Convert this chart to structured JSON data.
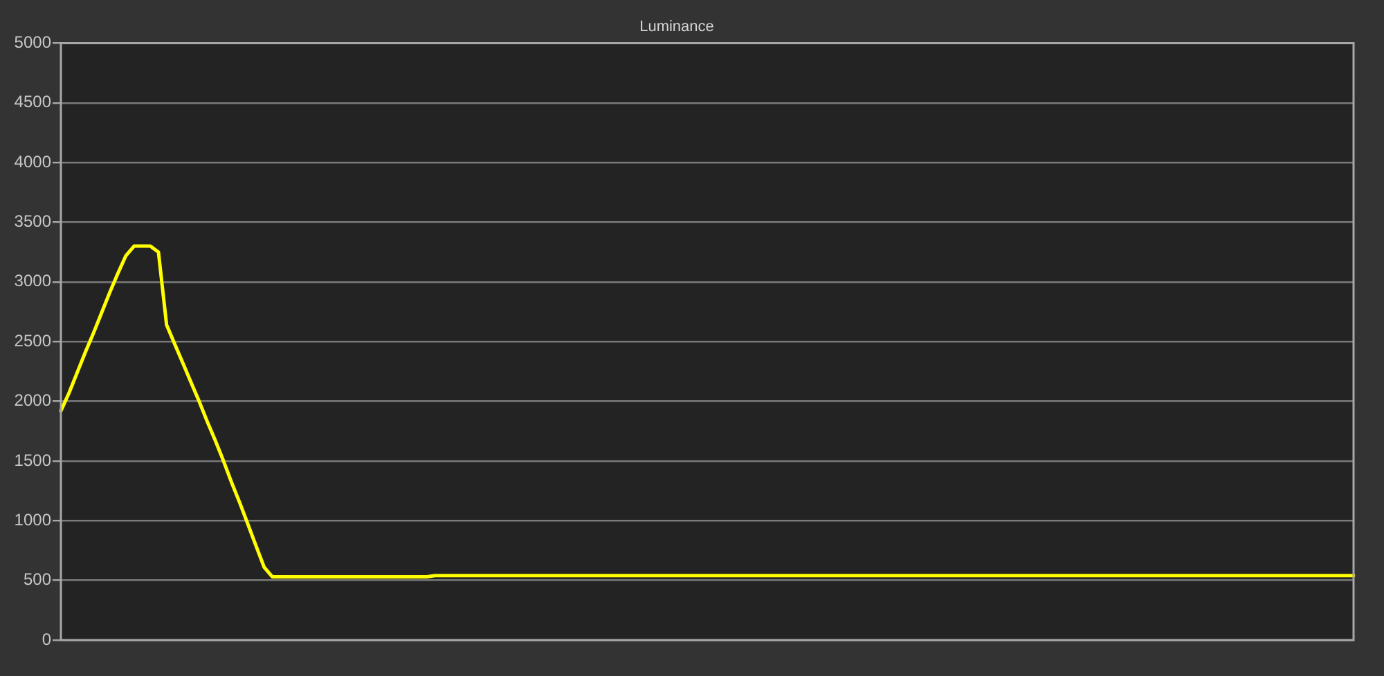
{
  "chart_data": {
    "type": "line",
    "title": "Luminance",
    "categories": [
      null,
      null,
      null,
      null,
      null,
      null,
      null,
      null,
      null,
      null,
      null,
      null,
      null,
      null,
      null,
      null,
      null,
      null,
      null,
      null,
      null,
      null,
      null,
      null,
      null,
      null,
      null,
      null,
      null,
      null,
      null,
      null,
      null,
      null,
      null,
      null,
      null,
      null,
      null,
      null,
      null,
      null,
      null,
      null,
      null,
      null,
      null,
      null,
      null,
      null,
      null,
      null,
      null,
      null,
      null,
      null,
      null,
      null,
      null,
      null,
      null,
      null,
      null,
      null,
      null,
      null,
      null,
      null,
      null,
      null,
      null,
      null,
      null,
      null,
      null,
      null,
      null,
      null,
      null,
      null,
      null,
      null,
      null,
      null,
      null,
      null,
      null,
      null,
      null,
      null,
      null,
      null,
      null,
      null,
      null,
      null,
      null,
      null,
      null,
      null,
      null,
      null,
      null,
      null,
      null,
      null,
      null,
      null,
      null,
      null,
      null,
      null,
      null,
      null,
      null,
      null,
      null,
      null,
      null,
      null,
      null,
      null,
      null,
      null,
      null,
      null,
      null,
      null,
      null,
      null,
      null,
      null,
      null,
      null,
      null,
      null,
      null,
      null,
      null,
      null,
      null,
      null,
      null,
      null,
      null,
      null,
      null,
      null,
      null,
      null,
      null,
      null,
      null,
      null,
      null,
      null,
      null,
      null,
      null,
      null
    ],
    "values": [
      1920,
      2070,
      2240,
      2410,
      2570,
      2740,
      2910,
      3070,
      3220,
      3300,
      3300,
      3300,
      3250,
      2640,
      2480,
      2320,
      2160,
      2000,
      1830,
      1670,
      1500,
      1320,
      1150,
      970,
      790,
      610,
      530,
      530,
      530,
      530,
      530,
      530,
      530,
      530,
      530,
      530,
      530,
      530,
      530,
      530,
      530,
      530,
      530,
      530,
      530,
      530,
      540,
      540,
      540,
      540,
      540,
      540,
      540,
      540,
      540,
      540,
      540,
      540,
      540,
      540,
      540,
      540,
      540,
      540,
      540,
      540,
      540,
      540,
      540,
      540,
      540,
      540,
      540,
      540,
      540,
      540,
      540,
      540,
      540,
      540,
      540,
      540,
      540,
      540,
      540,
      540,
      540,
      540,
      540,
      540,
      540,
      540,
      540,
      540,
      540,
      540,
      540,
      540,
      540,
      540,
      540,
      540,
      540,
      540,
      540,
      540,
      540,
      540,
      540,
      540,
      540,
      540,
      540,
      540,
      540,
      540,
      540,
      540,
      540,
      540,
      540,
      540,
      540,
      540,
      540,
      540,
      540,
      540,
      540,
      540,
      540,
      540,
      540,
      540,
      540,
      540,
      540,
      540,
      540,
      540,
      540,
      540,
      540,
      540,
      540,
      540,
      540,
      540,
      540,
      540,
      540,
      540,
      540,
      540,
      540,
      540,
      540,
      540,
      540,
      540
    ],
    "color": "#ffff00",
    "ylim": [
      0,
      5000
    ],
    "yticks": [
      0,
      500,
      1000,
      1500,
      2000,
      2500,
      3000,
      3500,
      4000,
      4500,
      5000
    ],
    "grid": "y",
    "tick_labels": "y",
    "marker": "none",
    "line_style": "solid"
  }
}
